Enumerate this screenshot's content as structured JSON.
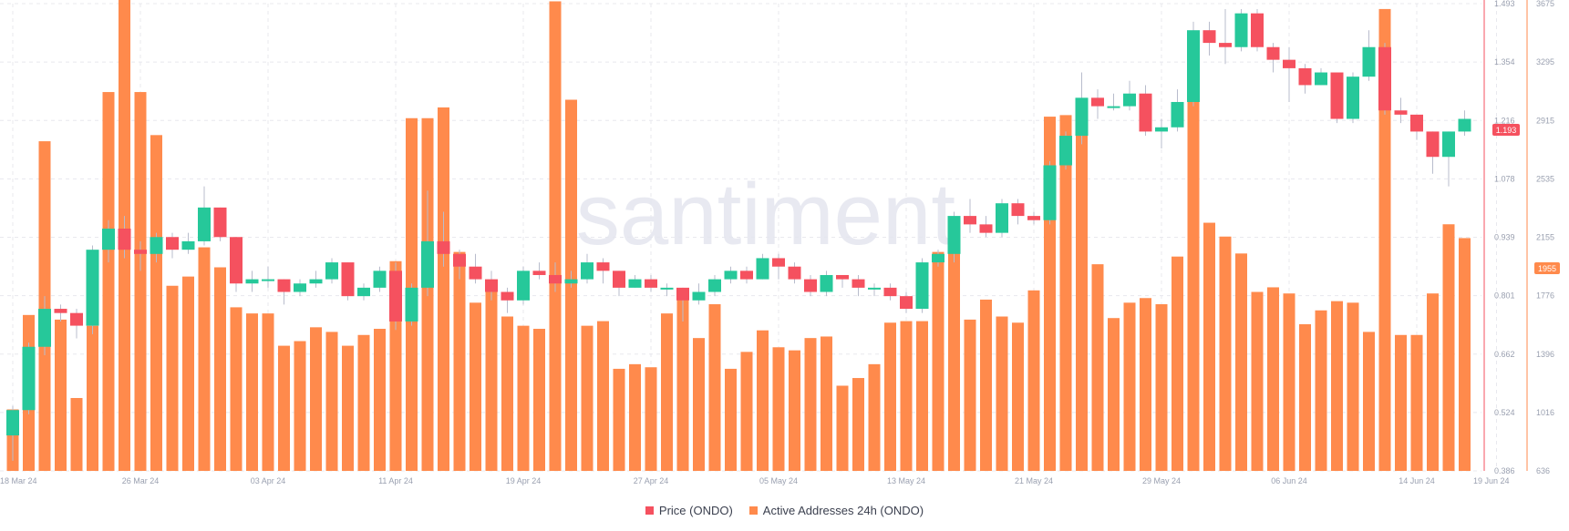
{
  "watermark": "santiment",
  "price_badge": "1.193",
  "address_badge": "1955",
  "legend": [
    {
      "label": "Price (ONDO)",
      "color": "#f5515f"
    },
    {
      "label": "Active Addresses 24h (ONDO)",
      "color": "#ff8a4c"
    }
  ],
  "colors": {
    "up": "#26c89a",
    "down": "#f5515f",
    "bar": "#ff8a4c",
    "grid": "#e8e8ee",
    "axis_text": "#9aa0b0"
  },
  "chart_data": {
    "type": "bar",
    "series": [
      {
        "name": "Active Addresses 24h (ONDO)",
        "type": "bar",
        "axis": "right",
        "values": [
          1036,
          1650,
          2780,
          1620,
          1110,
          1580,
          3100,
          3920,
          3100,
          2820,
          1840,
          1900,
          2090,
          1960,
          1700,
          1660,
          1660,
          1450,
          1480,
          1570,
          1540,
          1450,
          1520,
          1560,
          2000,
          2930,
          2930,
          3000,
          2060,
          1730,
          1860,
          1640,
          1580,
          1560,
          3690,
          3050,
          1580,
          1610,
          1300,
          1330,
          1310,
          1660,
          1770,
          1500,
          1720,
          1300,
          1410,
          1550,
          1440,
          1420,
          1500,
          1510,
          1190,
          1240,
          1330,
          1600,
          1610,
          1610,
          2060,
          2220,
          1620,
          1750,
          1640,
          1600,
          1810,
          2940,
          2950,
          2850,
          1980,
          1630,
          1730,
          1760,
          1720,
          2030,
          3460,
          2250,
          2160,
          2050,
          1800,
          1830,
          1790,
          1590,
          1680,
          1740,
          1730,
          1540,
          3640,
          1520,
          1520,
          1790,
          2240,
          2150
        ],
        "ylim": [
          636,
          3675
        ],
        "ticks": [
          "636",
          "1016",
          "1396",
          "1776",
          "2155",
          "2535",
          "2915",
          "3295",
          "3675"
        ]
      },
      {
        "name": "Price (ONDO)",
        "type": "candlestick",
        "axis": "left",
        "ohlc": [
          [
            0.47,
            0.53,
            0.41,
            0.54
          ],
          [
            0.53,
            0.68,
            0.52,
            0.69
          ],
          [
            0.68,
            0.77,
            0.66,
            0.8
          ],
          [
            0.77,
            0.76,
            0.74,
            0.78
          ],
          [
            0.76,
            0.73,
            0.7,
            0.77
          ],
          [
            0.73,
            0.91,
            0.71,
            0.92
          ],
          [
            0.91,
            0.96,
            0.88,
            0.98
          ],
          [
            0.96,
            0.91,
            0.89,
            0.99
          ],
          [
            0.91,
            0.9,
            0.86,
            0.93
          ],
          [
            0.9,
            0.94,
            0.88,
            0.95
          ],
          [
            0.94,
            0.91,
            0.89,
            0.95
          ],
          [
            0.91,
            0.93,
            0.9,
            0.95
          ],
          [
            0.93,
            1.01,
            0.92,
            1.06
          ],
          [
            1.01,
            0.94,
            0.93,
            1.01
          ],
          [
            0.94,
            0.83,
            0.81,
            0.94
          ],
          [
            0.83,
            0.84,
            0.81,
            0.86
          ],
          [
            0.84,
            0.84,
            0.82,
            0.87
          ],
          [
            0.84,
            0.81,
            0.78,
            0.84
          ],
          [
            0.81,
            0.83,
            0.8,
            0.84
          ],
          [
            0.83,
            0.84,
            0.82,
            0.86
          ],
          [
            0.84,
            0.88,
            0.83,
            0.89
          ],
          [
            0.88,
            0.8,
            0.79,
            0.88
          ],
          [
            0.8,
            0.82,
            0.79,
            0.83
          ],
          [
            0.82,
            0.86,
            0.81,
            0.87
          ],
          [
            0.86,
            0.74,
            0.72,
            0.88
          ],
          [
            0.74,
            0.82,
            0.73,
            0.83
          ],
          [
            0.82,
            0.93,
            0.8,
            1.05
          ],
          [
            0.93,
            0.9,
            0.87,
            1.0
          ],
          [
            0.9,
            0.87,
            0.84,
            0.91
          ],
          [
            0.87,
            0.84,
            0.83,
            0.9
          ],
          [
            0.84,
            0.81,
            0.79,
            0.86
          ],
          [
            0.81,
            0.79,
            0.76,
            0.82
          ],
          [
            0.79,
            0.86,
            0.78,
            0.87
          ],
          [
            0.86,
            0.85,
            0.84,
            0.88
          ],
          [
            0.85,
            0.83,
            0.81,
            0.88
          ],
          [
            0.83,
            0.84,
            0.82,
            0.86
          ],
          [
            0.84,
            0.88,
            0.83,
            0.9
          ],
          [
            0.88,
            0.86,
            0.83,
            0.89
          ],
          [
            0.86,
            0.82,
            0.8,
            0.86
          ],
          [
            0.82,
            0.84,
            0.82,
            0.85
          ],
          [
            0.84,
            0.82,
            0.81,
            0.85
          ],
          [
            0.82,
            0.82,
            0.8,
            0.83
          ],
          [
            0.82,
            0.79,
            0.74,
            0.82
          ],
          [
            0.79,
            0.81,
            0.78,
            0.83
          ],
          [
            0.81,
            0.84,
            0.8,
            0.85
          ],
          [
            0.84,
            0.86,
            0.83,
            0.87
          ],
          [
            0.86,
            0.84,
            0.83,
            0.87
          ],
          [
            0.84,
            0.89,
            0.84,
            0.9
          ],
          [
            0.89,
            0.87,
            0.84,
            0.9
          ],
          [
            0.87,
            0.84,
            0.83,
            0.88
          ],
          [
            0.84,
            0.81,
            0.8,
            0.85
          ],
          [
            0.81,
            0.85,
            0.8,
            0.86
          ],
          [
            0.85,
            0.84,
            0.82,
            0.85
          ],
          [
            0.84,
            0.82,
            0.8,
            0.85
          ],
          [
            0.82,
            0.82,
            0.8,
            0.83
          ],
          [
            0.82,
            0.8,
            0.79,
            0.83
          ],
          [
            0.8,
            0.77,
            0.76,
            0.81
          ],
          [
            0.77,
            0.88,
            0.76,
            0.89
          ],
          [
            0.88,
            0.9,
            0.87,
            0.91
          ],
          [
            0.9,
            0.99,
            0.88,
            1.0
          ],
          [
            0.99,
            0.97,
            0.95,
            1.03
          ],
          [
            0.97,
            0.95,
            0.94,
            0.99
          ],
          [
            0.95,
            1.02,
            0.94,
            1.03
          ],
          [
            1.02,
            0.99,
            0.97,
            1.03
          ],
          [
            0.99,
            0.98,
            0.97,
            1.0
          ],
          [
            0.98,
            1.11,
            0.97,
            1.12
          ],
          [
            1.11,
            1.18,
            1.1,
            1.19
          ],
          [
            1.18,
            1.27,
            1.16,
            1.33
          ],
          [
            1.27,
            1.25,
            1.22,
            1.29
          ],
          [
            1.25,
            1.25,
            1.24,
            1.28
          ],
          [
            1.25,
            1.28,
            1.24,
            1.31
          ],
          [
            1.28,
            1.19,
            1.18,
            1.3
          ],
          [
            1.19,
            1.2,
            1.15,
            1.22
          ],
          [
            1.2,
            1.26,
            1.19,
            1.29
          ],
          [
            1.26,
            1.43,
            1.25,
            1.45
          ],
          [
            1.43,
            1.4,
            1.37,
            1.45
          ],
          [
            1.4,
            1.39,
            1.35,
            1.48
          ],
          [
            1.39,
            1.47,
            1.38,
            1.48
          ],
          [
            1.47,
            1.39,
            1.38,
            1.48
          ],
          [
            1.39,
            1.36,
            1.33,
            1.4
          ],
          [
            1.36,
            1.34,
            1.26,
            1.39
          ],
          [
            1.34,
            1.3,
            1.28,
            1.35
          ],
          [
            1.3,
            1.33,
            1.3,
            1.34
          ],
          [
            1.33,
            1.22,
            1.21,
            1.33
          ],
          [
            1.22,
            1.32,
            1.21,
            1.33
          ],
          [
            1.32,
            1.39,
            1.31,
            1.43
          ],
          [
            1.39,
            1.24,
            1.23,
            1.4
          ],
          [
            1.24,
            1.23,
            1.21,
            1.27
          ],
          [
            1.23,
            1.19,
            1.17,
            1.23
          ],
          [
            1.19,
            1.13,
            1.09,
            1.19
          ],
          [
            1.13,
            1.19,
            1.06,
            1.19
          ],
          [
            1.19,
            1.22,
            1.18,
            1.24
          ]
        ],
        "ylim": [
          0.386,
          1.493
        ],
        "ticks": [
          "0.386",
          "0.524",
          "0.662",
          "0.801",
          "0.939",
          "1.078",
          "1.216",
          "1.354",
          "1.493"
        ]
      }
    ],
    "x_ticks": [
      {
        "label": "18 Mar 24",
        "index": 0
      },
      {
        "label": "26 Mar 24",
        "index": 8
      },
      {
        "label": "03 Apr 24",
        "index": 16
      },
      {
        "label": "11 Apr 24",
        "index": 24
      },
      {
        "label": "19 Apr 24",
        "index": 32
      },
      {
        "label": "27 Apr 24",
        "index": 40
      },
      {
        "label": "05 May 24",
        "index": 48
      },
      {
        "label": "13 May 24",
        "index": 56
      },
      {
        "label": "21 May 24",
        "index": 64
      },
      {
        "label": "29 May 24",
        "index": 72
      },
      {
        "label": "06 Jun 24",
        "index": 80
      },
      {
        "label": "14 Jun 24",
        "index": 88
      },
      {
        "label": "19 Jun 24",
        "index": 93
      }
    ],
    "grid": true,
    "legend_position": "bottom"
  }
}
